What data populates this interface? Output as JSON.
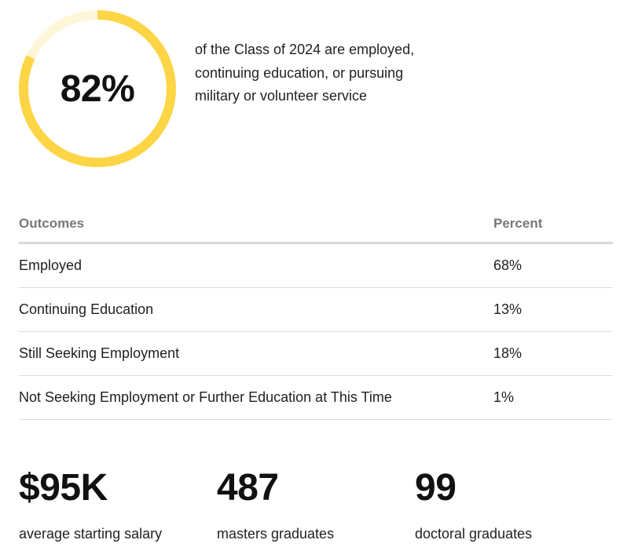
{
  "highlight": {
    "value": "82%",
    "fraction": 0.82,
    "caption": "of the Class of 2024 are employed, continuing education, or pursuing military or volunteer service",
    "ring_color": "#FDD545",
    "ring_track_color": "#FDF6D8"
  },
  "table": {
    "headers": {
      "outcome": "Outcomes",
      "percent": "Percent"
    },
    "rows": [
      {
        "outcome": "Employed",
        "percent": "68%"
      },
      {
        "outcome": "Continuing Education",
        "percent": "13%"
      },
      {
        "outcome": "Still Seeking Employment",
        "percent": "18%"
      },
      {
        "outcome": "Not Seeking Employment or Further Education at This Time",
        "percent": "1%"
      }
    ]
  },
  "stats": [
    {
      "value": "$95K",
      "label": "average starting salary"
    },
    {
      "value": "487",
      "label": "masters graduates"
    },
    {
      "value": "99",
      "label": "doctoral graduates"
    }
  ]
}
